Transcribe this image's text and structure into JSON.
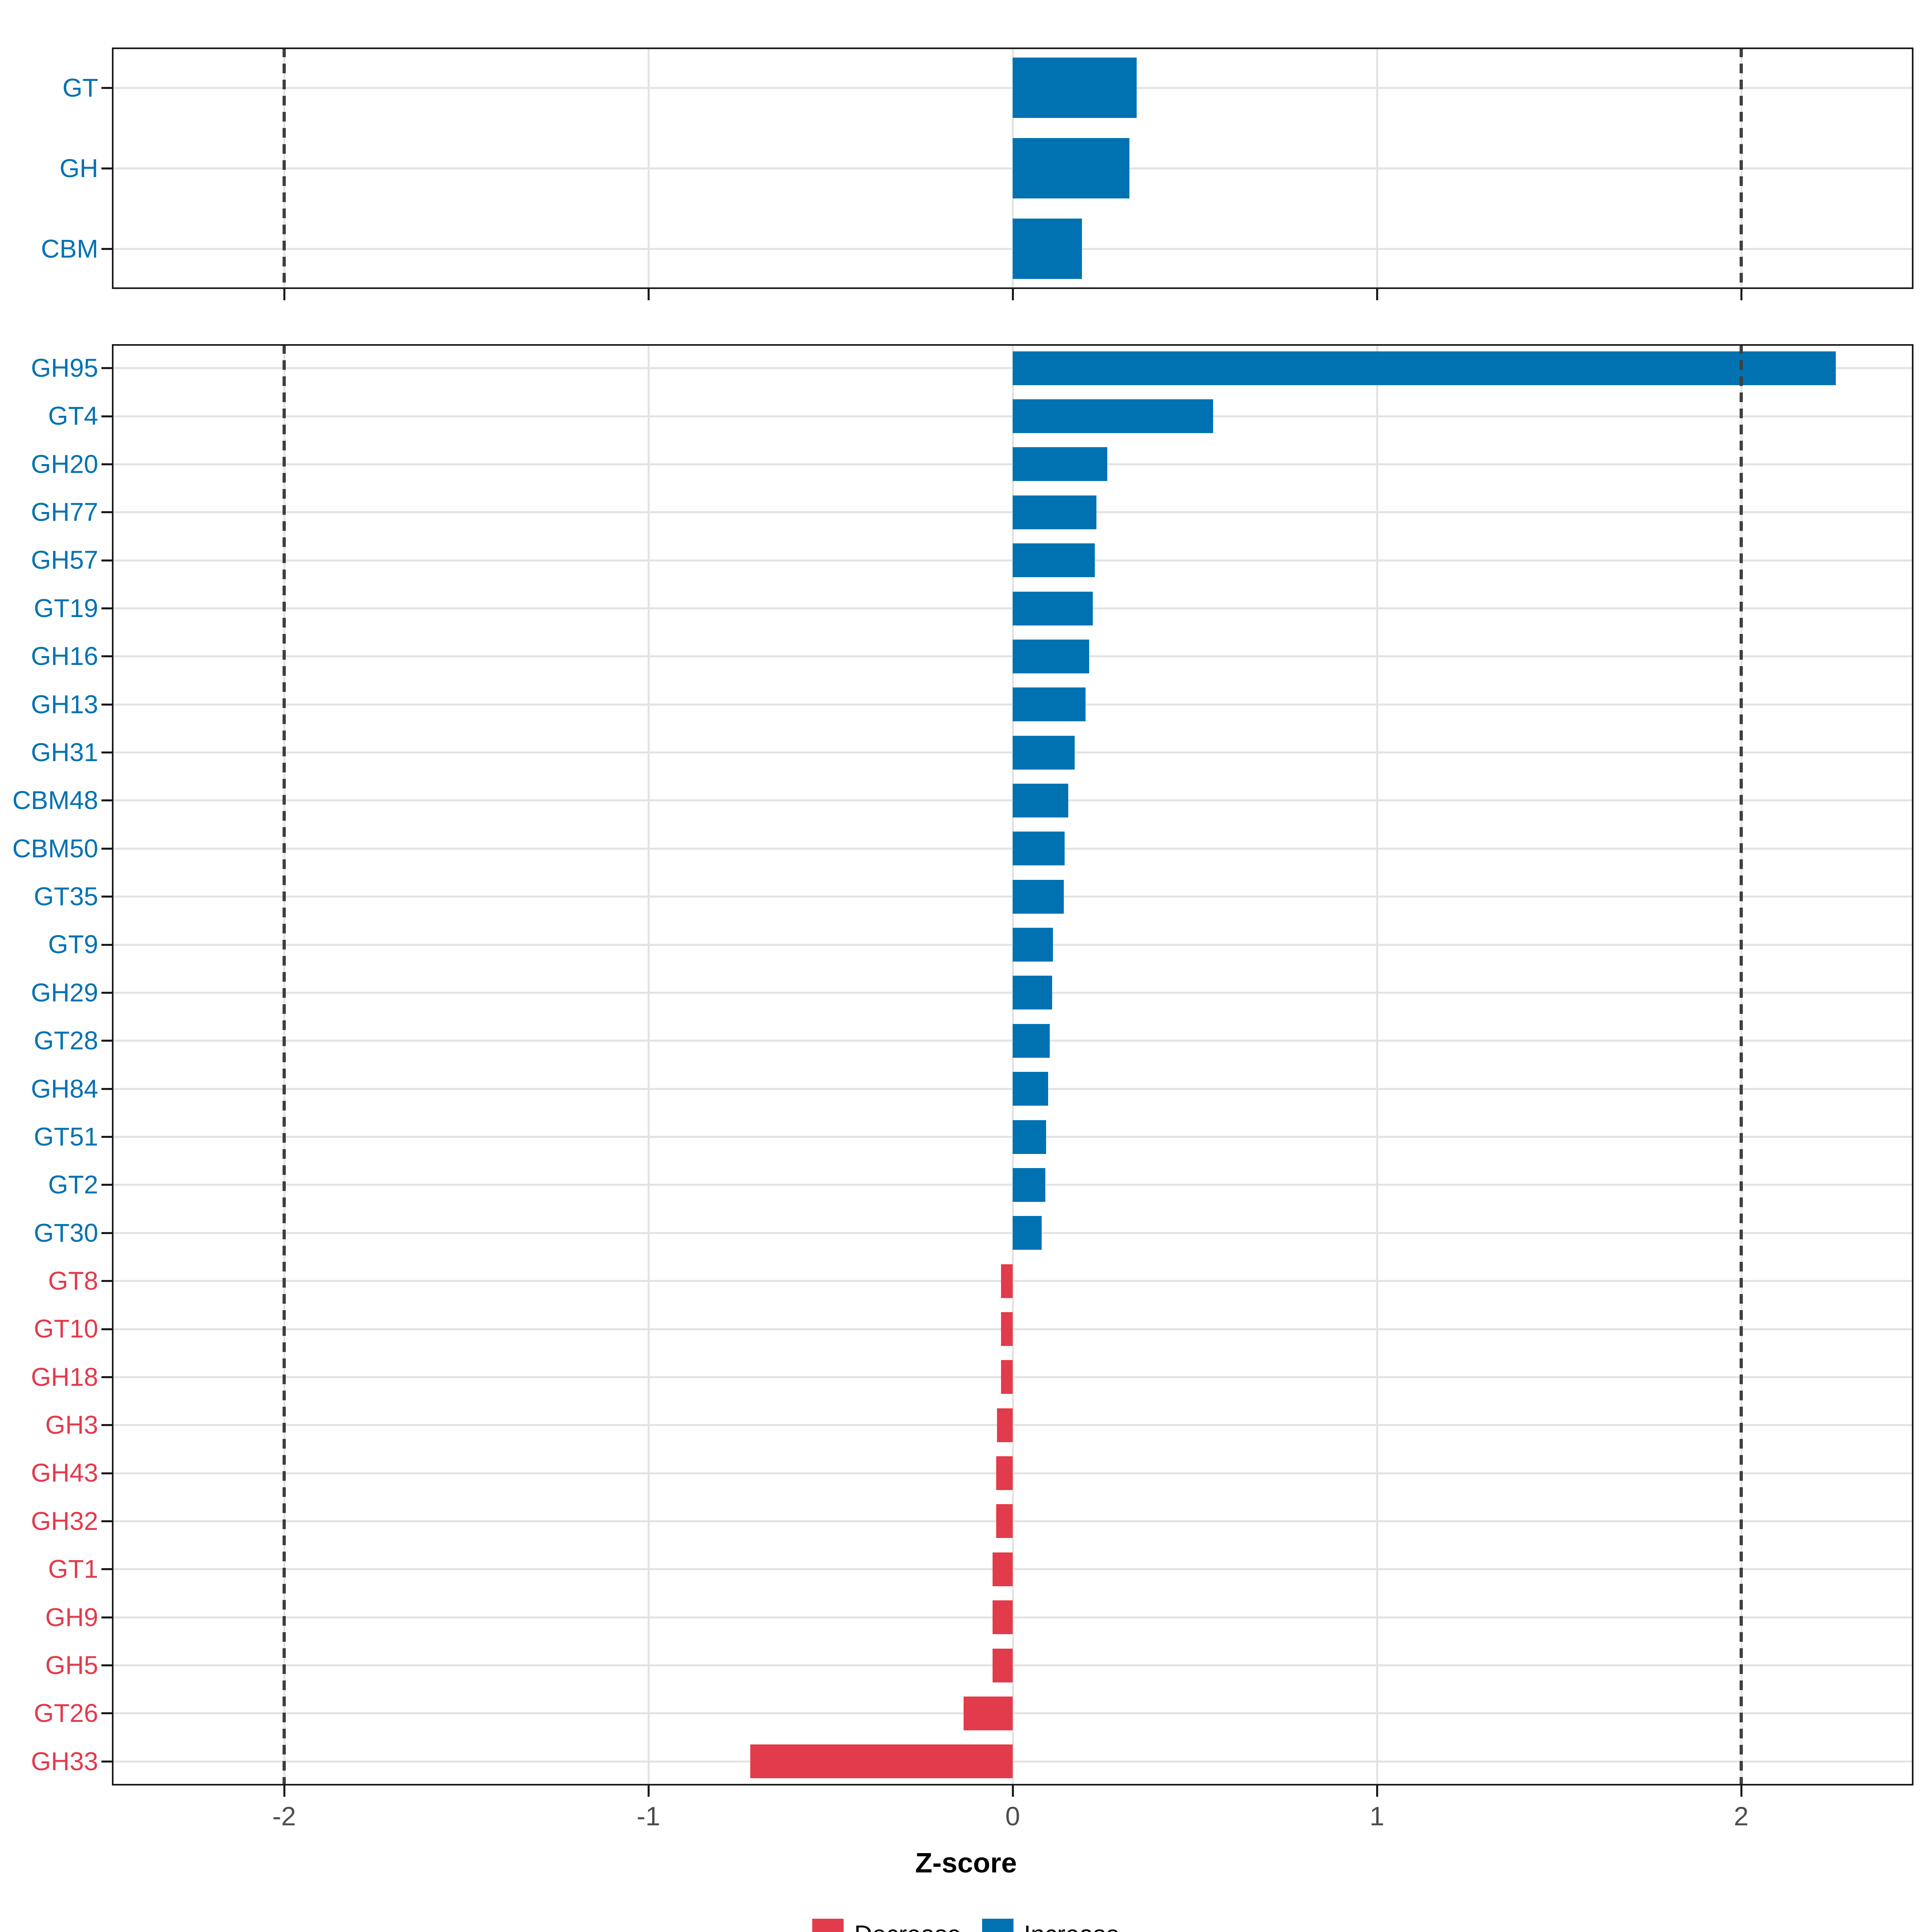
{
  "chart_data": {
    "type": "bar",
    "orientation": "horizontal",
    "title": "",
    "xlabel": "Z-score",
    "ylabel": "",
    "x_ticks": [
      "-2",
      "-1",
      "0",
      "1",
      "2"
    ],
    "x_tick_values": [
      -2,
      -1,
      0,
      1,
      2
    ],
    "xlim": [
      -2.47,
      2.47
    ],
    "reference_lines_x": [
      -2,
      2
    ],
    "grid": true,
    "legend_position": "bottom",
    "colors": {
      "increase": "#0072B2",
      "decrease": "#E23B4C"
    },
    "legend": [
      {
        "key": "decrease",
        "label": "Decrease"
      },
      {
        "key": "increase",
        "label": "Increase"
      }
    ],
    "panels": [
      {
        "name": "cazyme-classes",
        "categories": [
          "GT",
          "GH",
          "CBM"
        ],
        "values": [
          0.34,
          0.32,
          0.19
        ],
        "directions": [
          "increase",
          "increase",
          "increase"
        ]
      },
      {
        "name": "cazyme-families",
        "categories": [
          "GH95",
          "GT4",
          "GH20",
          "GH77",
          "GH57",
          "GT19",
          "GH16",
          "GH13",
          "GH31",
          "CBM48",
          "CBM50",
          "GT35",
          "GT9",
          "GH29",
          "GT28",
          "GH84",
          "GT51",
          "GT2",
          "GT30",
          "GT8",
          "GT10",
          "GH18",
          "GH3",
          "GH43",
          "GH32",
          "GT1",
          "GH9",
          "GH5",
          "GT26",
          "GH33"
        ],
        "values": [
          2.26,
          0.55,
          0.26,
          0.23,
          0.225,
          0.22,
          0.21,
          0.2,
          0.17,
          0.152,
          0.142,
          0.14,
          0.11,
          0.108,
          0.102,
          0.097,
          0.092,
          0.09,
          0.08,
          -0.032,
          -0.032,
          -0.032,
          -0.043,
          -0.045,
          -0.045,
          -0.055,
          -0.055,
          -0.055,
          -0.135,
          -0.72
        ],
        "directions": [
          "increase",
          "increase",
          "increase",
          "increase",
          "increase",
          "increase",
          "increase",
          "increase",
          "increase",
          "increase",
          "increase",
          "increase",
          "increase",
          "increase",
          "increase",
          "increase",
          "increase",
          "increase",
          "increase",
          "decrease",
          "decrease",
          "decrease",
          "decrease",
          "decrease",
          "decrease",
          "decrease",
          "decrease",
          "decrease",
          "decrease",
          "decrease"
        ]
      }
    ]
  }
}
